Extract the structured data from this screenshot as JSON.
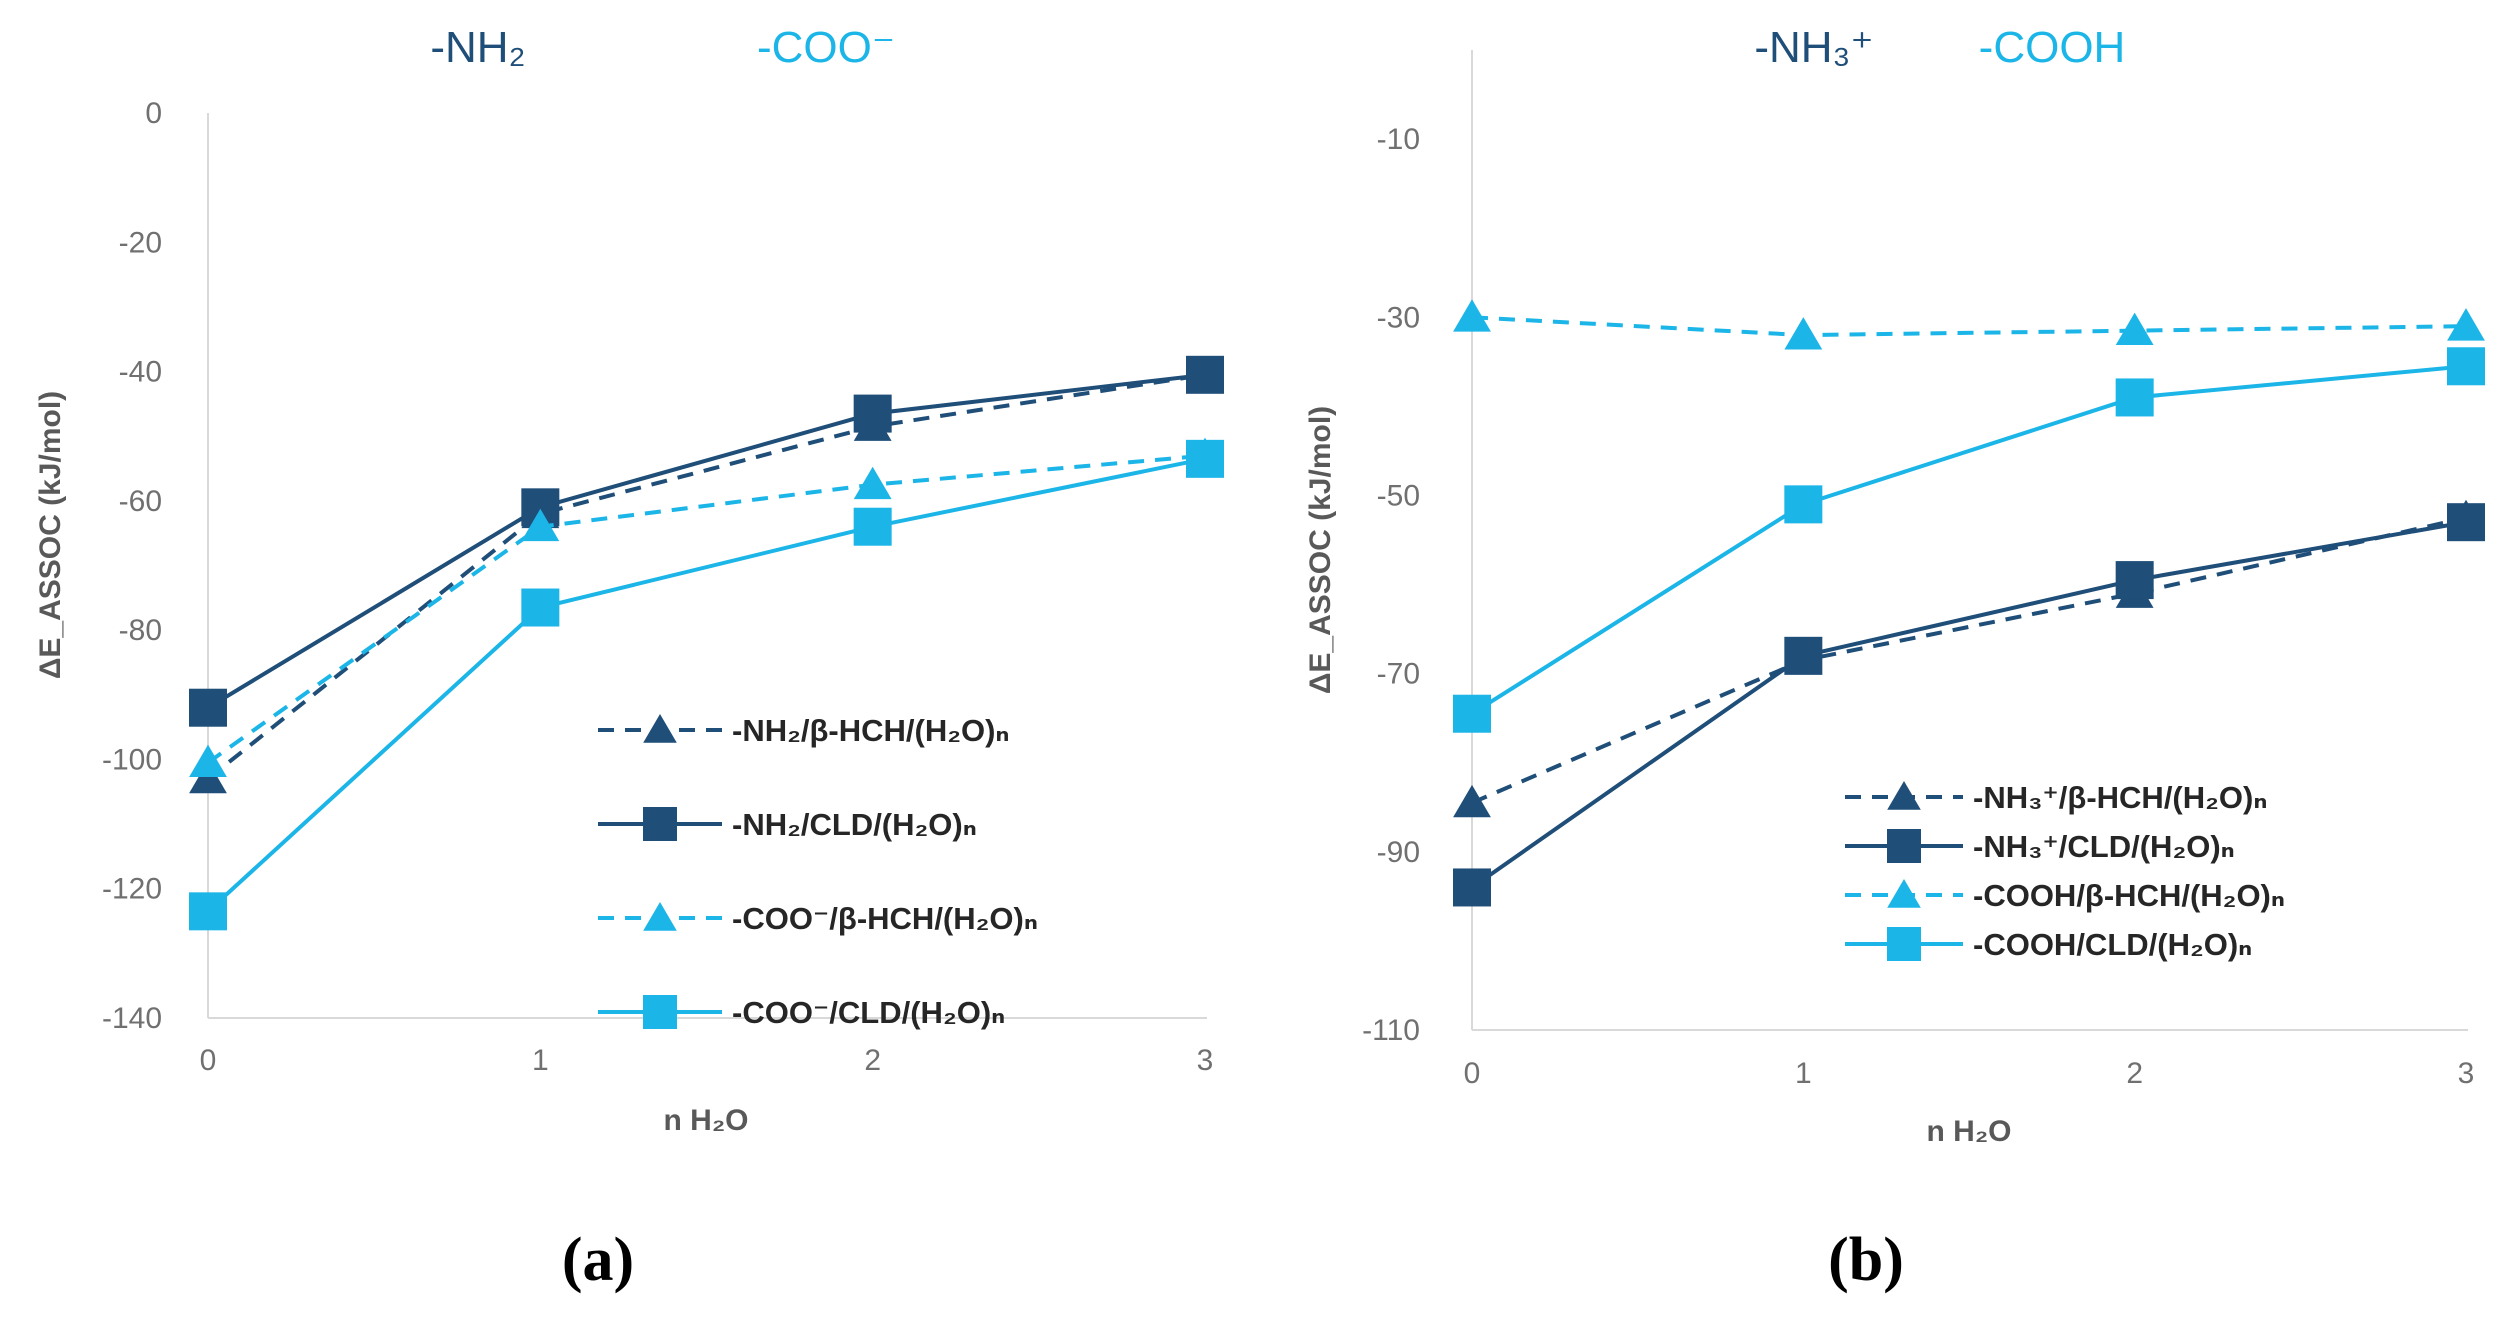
{
  "chart_data": [
    {
      "type": "line",
      "panel_label": "(a)",
      "headers": [
        {
          "text": "-NH₂",
          "color": "#1f4e79"
        },
        {
          "text": "-COO⁻",
          "color": "#1cb5e8"
        }
      ],
      "xlabel": "n H₂O",
      "ylabel": "ΔE_ASSOC (kJ/mol)",
      "x": [
        0,
        1,
        2,
        3
      ],
      "x_tick_labels": [
        "0",
        "1",
        "2",
        "3"
      ],
      "ylim": [
        -140,
        0
      ],
      "y_ticks": [
        0,
        -20,
        -40,
        -60,
        -80,
        -100,
        -120,
        -140
      ],
      "y_tick_labels": [
        "0",
        "-20",
        "-40",
        "-60",
        "-80",
        "-100",
        "-120",
        "-140"
      ],
      "legend_position": "lower-right",
      "series": [
        {
          "name": "-NH₂/β-HCH/(H₂O)ₙ",
          "values": [
            -103,
            -62,
            -48.5,
            -40.5
          ],
          "color": "#1f4e79",
          "dash": "dashed",
          "marker": "triangle"
        },
        {
          "name": "-NH₂/CLD/(H₂O)ₙ",
          "values": [
            -92,
            -61,
            -46.5,
            -40.5
          ],
          "color": "#1f4e79",
          "dash": "solid",
          "marker": "square"
        },
        {
          "name": "-COO⁻/β-HCH/(H₂O)ₙ",
          "values": [
            -100.5,
            -64,
            -57.5,
            -53
          ],
          "color": "#1cb5e8",
          "dash": "dashed",
          "marker": "triangle"
        },
        {
          "name": "-COO⁻/CLD/(H₂O)ₙ",
          "values": [
            -123.5,
            -76.5,
            -64,
            -53.5
          ],
          "color": "#1cb5e8",
          "dash": "solid",
          "marker": "square"
        }
      ]
    },
    {
      "type": "line",
      "panel_label": "(b)",
      "headers": [
        {
          "text": "-NH₃⁺",
          "color": "#1f4e79"
        },
        {
          "text": "-COOH",
          "color": "#1cb5e8"
        }
      ],
      "xlabel": "n H₂O",
      "ylabel": "ΔE_ASSOC (kJ/mol)",
      "x": [
        0,
        1,
        2,
        3
      ],
      "x_tick_labels": [
        "0",
        "1",
        "2",
        "3"
      ],
      "ylim": [
        -110,
        0
      ],
      "y_ticks": [
        -10,
        -30,
        -50,
        -70,
        -90,
        -110
      ],
      "y_tick_labels": [
        "-10",
        "-30",
        "-50",
        "-70",
        "-90",
        "-110"
      ],
      "legend_position": "lower-right",
      "series": [
        {
          "name": "-NH₃⁺/β-HCH/(H₂O)ₙ",
          "values": [
            -84.5,
            -68.5,
            -61,
            -52.5
          ],
          "color": "#1f4e79",
          "dash": "dashed",
          "marker": "triangle"
        },
        {
          "name": "-NH₃⁺/CLD/(H₂O)ₙ",
          "values": [
            -94,
            -68,
            -59.5,
            -53
          ],
          "color": "#1f4e79",
          "dash": "solid",
          "marker": "square"
        },
        {
          "name": "-COOH/β-HCH/(H₂O)ₙ",
          "values": [
            -30,
            -32,
            -31.5,
            -31
          ],
          "color": "#1cb5e8",
          "dash": "dashed",
          "marker": "triangle"
        },
        {
          "name": "-COOH/CLD/(H₂O)ₙ",
          "values": [
            -74.5,
            -51,
            -39,
            -35.5
          ],
          "color": "#1cb5e8",
          "dash": "solid",
          "marker": "square"
        }
      ]
    }
  ]
}
